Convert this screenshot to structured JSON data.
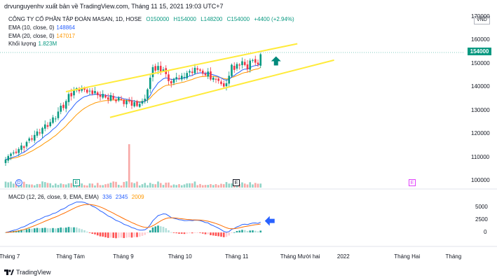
{
  "publisher_line": "drvunguyenhv xuất bản về TradingView.com, Tháng 11 15, 2021 19:03 UTC+7",
  "symbol_title": "CÔNG TY CỔ PHẦN TẬP ĐOÀN MASAN, 1D, HOSE",
  "ohlc": {
    "o": "O150000",
    "h": "H154000",
    "l": "L148200",
    "c": "C154000",
    "chg": "+4400 (+2.94%)"
  },
  "ema10": {
    "label": "EMA (10, close, 0)",
    "value": "148864"
  },
  "ema20": {
    "label": "EMA (20, close, 0)",
    "value": "147017"
  },
  "volume": {
    "label": "Khối lượng",
    "value": "1.823M"
  },
  "macd": {
    "label": "MACD (12, 26, close, 9, EMA, EMA)",
    "v1": "336",
    "v2": "2345",
    "v3": "2009"
  },
  "currency": "VND",
  "last_price": "154000",
  "price_ticks": [
    "170000",
    "160000",
    "150000",
    "140000",
    "130000",
    "120000",
    "110000",
    "100000"
  ],
  "macd_ticks": [
    "5000",
    "2500",
    "0"
  ],
  "x_ticks": [
    "Tháng 7",
    "Tháng Tám",
    "Tháng 9",
    "Tháng 10",
    "Tháng 11",
    "Tháng Mười hai",
    "2022",
    "Tháng Hai",
    "Tháng"
  ],
  "event_markers": [
    {
      "label": "D"
    },
    {
      "label": "E"
    },
    {
      "label": "E"
    },
    {
      "label": "E"
    }
  ],
  "brand": "TradingView",
  "colors": {
    "up": "#089981",
    "down": "#f23645",
    "ema10": "#2962ff",
    "ema20": "#ff9800",
    "channel": "#ffeb3b",
    "macd_line": "#2962ff",
    "signal_line": "#ff6d00"
  },
  "chart_data": {
    "type": "candlestick",
    "title": "CÔNG TY CỔ PHẦN TẬP ĐOÀN MASAN, 1D, HOSE",
    "ylim": [
      97000,
      173000
    ],
    "x_range": [
      "2021-06-28",
      "2022-03-05"
    ],
    "closes": [
      109000,
      110500,
      111500,
      112000,
      111800,
      113500,
      115000,
      114000,
      116500,
      118000,
      117500,
      119500,
      121000,
      120200,
      122500,
      124000,
      123000,
      125000,
      127000,
      126500,
      129500,
      132000,
      131000,
      134000,
      137000,
      136000,
      138500,
      139500,
      138200,
      139200,
      138800,
      137600,
      138400,
      137000,
      138300,
      136500,
      135800,
      137000,
      135500,
      134600,
      136500,
      134800,
      133900,
      135500,
      134600,
      132700,
      134200,
      133800,
      132000,
      133500,
      131900,
      132800,
      134000,
      135000,
      139000,
      144000,
      148500,
      147000,
      149000,
      146500,
      147500,
      145500,
      142500,
      141500,
      143500,
      144200,
      143600,
      144800,
      144300,
      146000,
      146800,
      146000,
      148200,
      147400,
      147000,
      145700,
      145000,
      146600,
      143200,
      144000,
      143200,
      142600,
      141300,
      140200,
      141600,
      144800,
      149500,
      147300,
      149800,
      149200,
      151000,
      149400,
      147600,
      151300,
      151500,
      150400,
      149600,
      154000
    ],
    "volume_spike_index": 47,
    "ema10_last": 148864,
    "ema20_last": 147017,
    "last_close": 154000,
    "channel": {
      "upper": [
        [
          "2021-08-01",
          138000
        ],
        [
          "2021-12-05",
          158500
        ]
      ],
      "lower": [
        [
          "2021-08-25",
          127000
        ],
        [
          "2021-12-25",
          151500
        ]
      ]
    },
    "macd": {
      "ylim": [
        -2500,
        7000
      ],
      "ticks": [
        5000,
        2500,
        0
      ],
      "macd": 336,
      "signal": 2345,
      "hist": 2009
    },
    "annotations": [
      "up arrow near last candle",
      "left-pointing arrow at MACD pane"
    ]
  }
}
